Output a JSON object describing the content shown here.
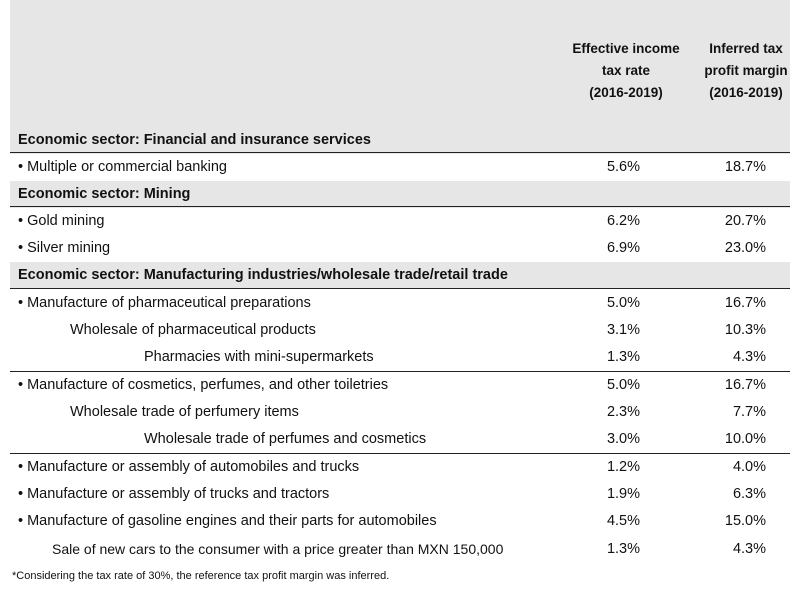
{
  "header": {
    "col1": "Effective income\ntax rate\n(2016-2019)",
    "col2": "Inferred tax\nprofit margin\n(2016-2019)"
  },
  "sectors": [
    {
      "title": "Economic sector: Financial and insurance services"
    },
    {
      "title": "Economic sector: Mining"
    },
    {
      "title": "Economic sector: Manufacturing industries/wholesale trade/retail trade"
    }
  ],
  "rows": [
    {
      "label": "• Multiple or commercial banking",
      "rate": "5.6%",
      "margin": "18.7%"
    },
    {
      "label": "• Gold mining",
      "rate": "6.2%",
      "margin": "20.7%"
    },
    {
      "label": "• Silver mining",
      "rate": "6.9%",
      "margin": "23.0%"
    },
    {
      "label": "• Manufacture of pharmaceutical preparations",
      "rate": "5.0%",
      "margin": "16.7%"
    },
    {
      "label": "Wholesale of pharmaceutical products",
      "rate": "3.1%",
      "margin": "10.3%"
    },
    {
      "label": "Pharmacies with mini-supermarkets",
      "rate": "1.3%",
      "margin": "4.3%"
    },
    {
      "label": "• Manufacture of cosmetics, perfumes, and other toiletries",
      "rate": "5.0%",
      "margin": "16.7%"
    },
    {
      "label": "Wholesale trade of perfumery items",
      "rate": "2.3%",
      "margin": "7.7%"
    },
    {
      "label": "Wholesale trade of perfumes and cosmetics",
      "rate": "3.0%",
      "margin": "10.0%"
    },
    {
      "label": "• Manufacture or assembly of automobiles and trucks",
      "rate": "1.2%",
      "margin": "4.0%"
    },
    {
      "label": "• Manufacture or assembly of trucks and tractors",
      "rate": "1.9%",
      "margin": "6.3%"
    },
    {
      "label": "• Manufacture of gasoline engines and their parts for automobiles",
      "rate": "4.5%",
      "margin": "15.0%"
    },
    {
      "label": "Sale of new cars to the consumer with a price greater than MXN 150,000",
      "rate": "1.3%",
      "margin": "4.3%"
    }
  ],
  "footnote": "*Considering the tax rate of 30%, the reference tax profit margin was inferred."
}
